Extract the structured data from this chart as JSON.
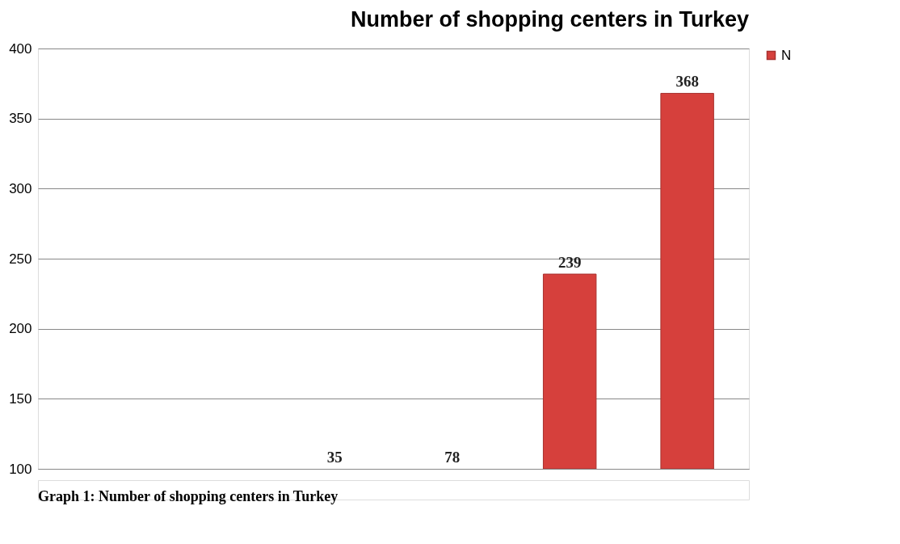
{
  "chart_data": {
    "type": "bar",
    "title": "Number of shopping centers in Turkey",
    "categories": [
      null,
      null,
      null,
      null,
      null,
      null
    ],
    "series": [
      {
        "name": "N",
        "color": "#d6403c",
        "values": [
          null,
          null,
          null,
          null,
          239,
          368
        ],
        "value_labels": [
          null,
          null,
          "35",
          "78",
          "239",
          "368"
        ]
      }
    ],
    "ylim": [
      100,
      400
    ],
    "yticks": [
      100,
      150,
      200,
      250,
      300,
      350,
      400
    ],
    "grid": "y",
    "legend": "right",
    "annotations": [
      "Graph 1: Number of shopping centers in Turkey"
    ]
  }
}
